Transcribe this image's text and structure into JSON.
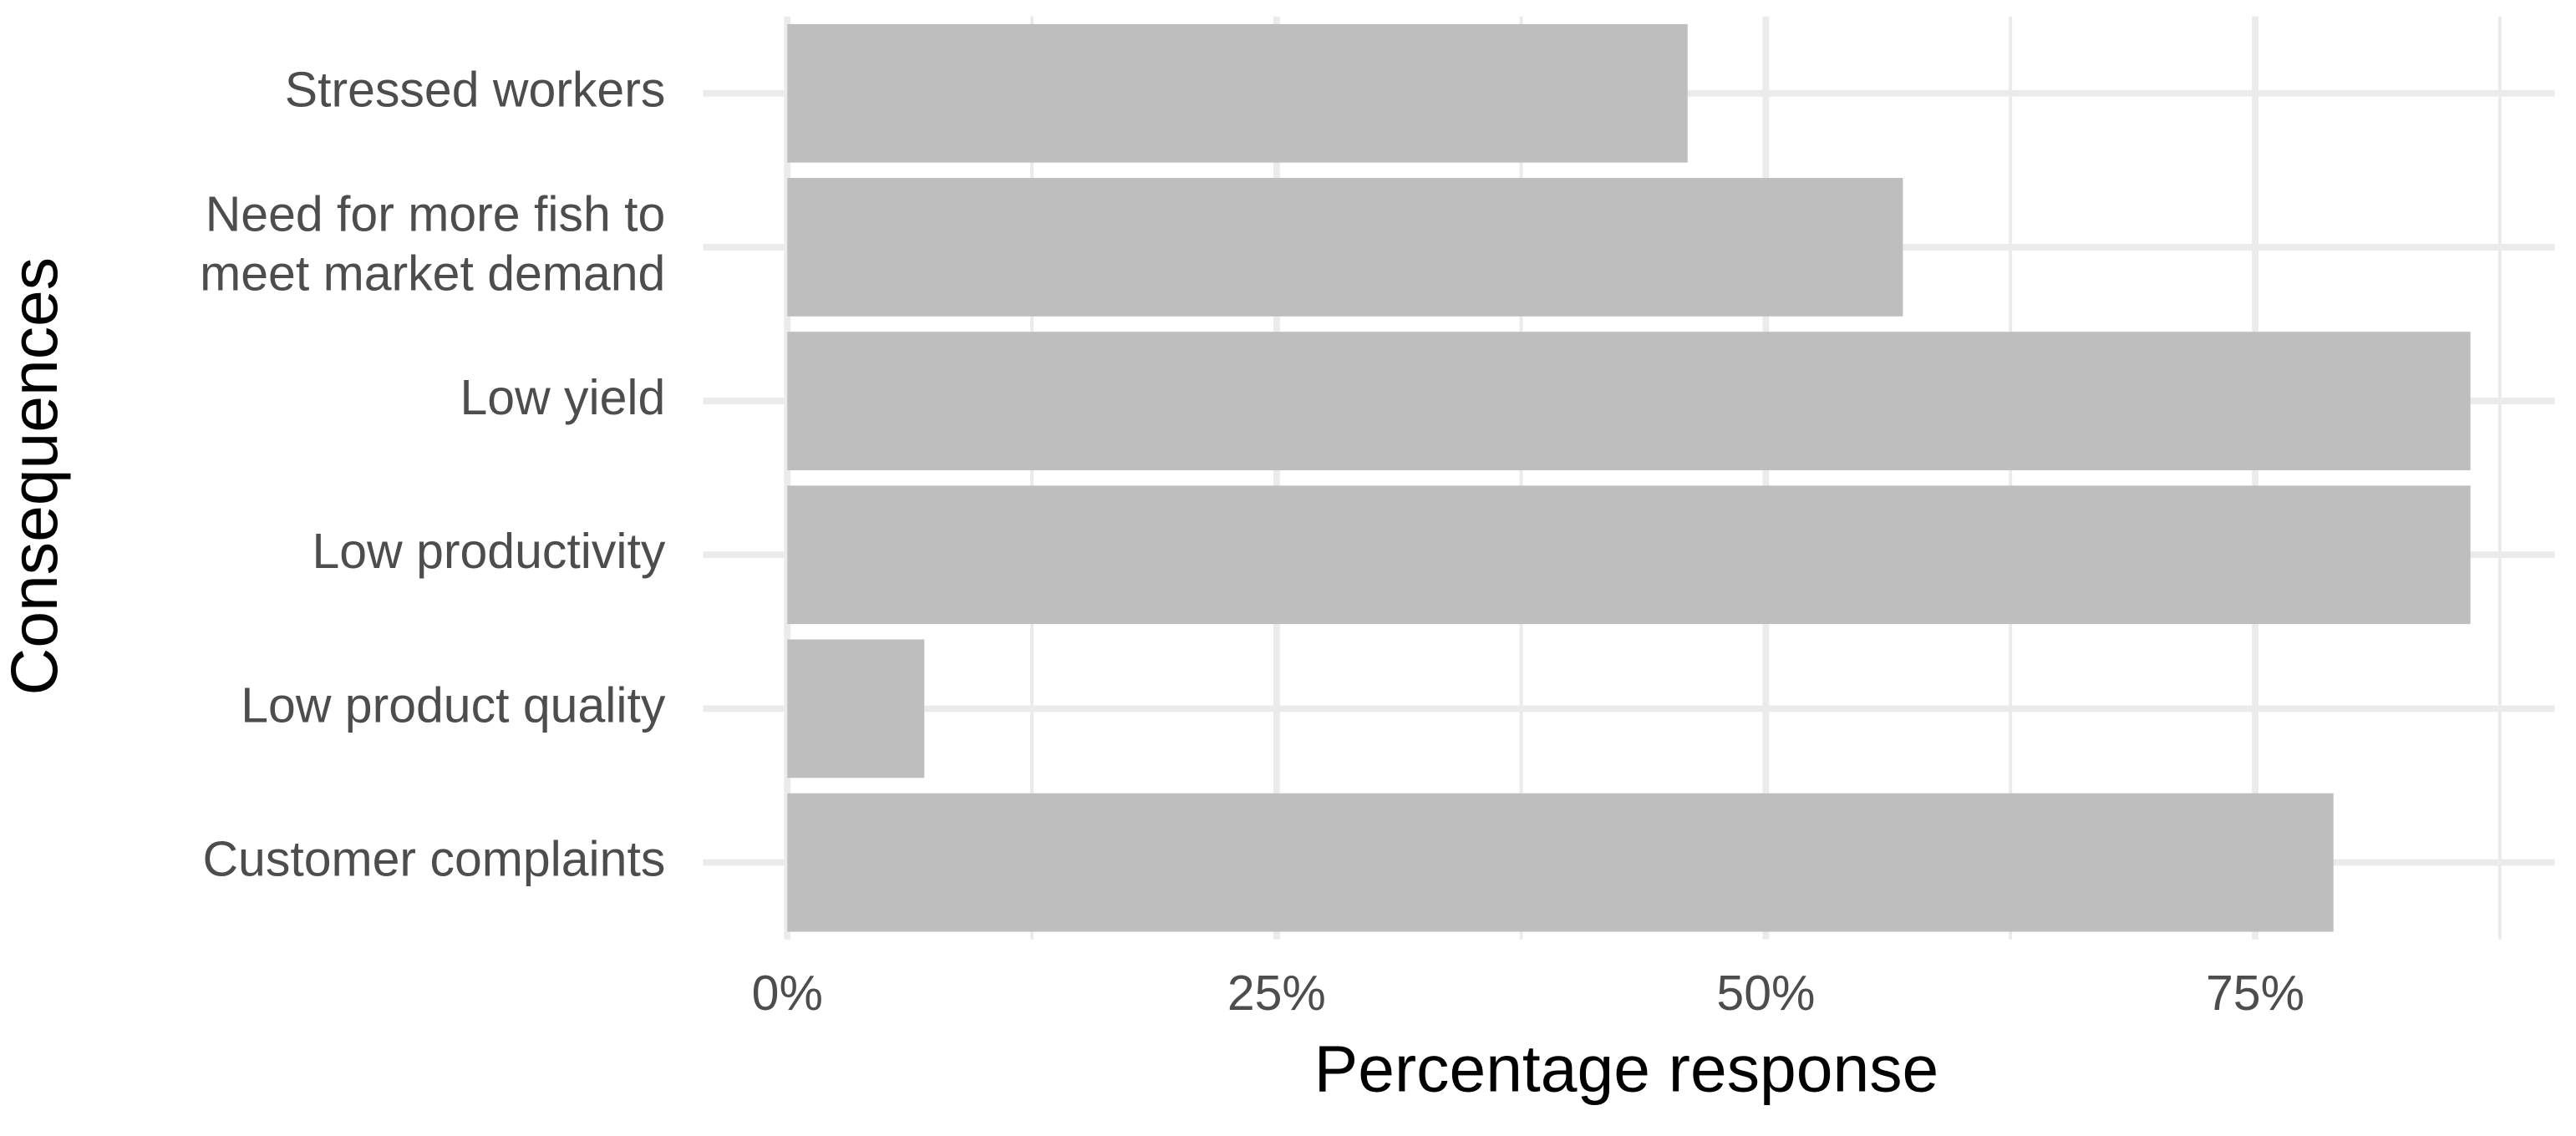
{
  "chart_data": {
    "type": "barh",
    "x_label": "Percentage response",
    "y_label": "Consequences",
    "categories": [
      "Stressed workers",
      "Need for more fish to\nmeet market demand",
      "Low yield",
      "Low productivity",
      "Low product quality",
      "Customer complaints"
    ],
    "values": [
      46,
      57,
      86,
      86,
      7,
      79
    ],
    "color": "#bebebe",
    "xlim": [
      -4.3,
      90.3
    ],
    "xticks": [
      {
        "value": 0,
        "label": "0%"
      },
      {
        "value": 25,
        "label": "25%"
      },
      {
        "value": 50,
        "label": "50%"
      },
      {
        "value": 75,
        "label": "75%"
      }
    ],
    "x_minor_ticks": [
      12.5,
      37.5,
      62.5,
      87.5
    ],
    "grid": true
  }
}
